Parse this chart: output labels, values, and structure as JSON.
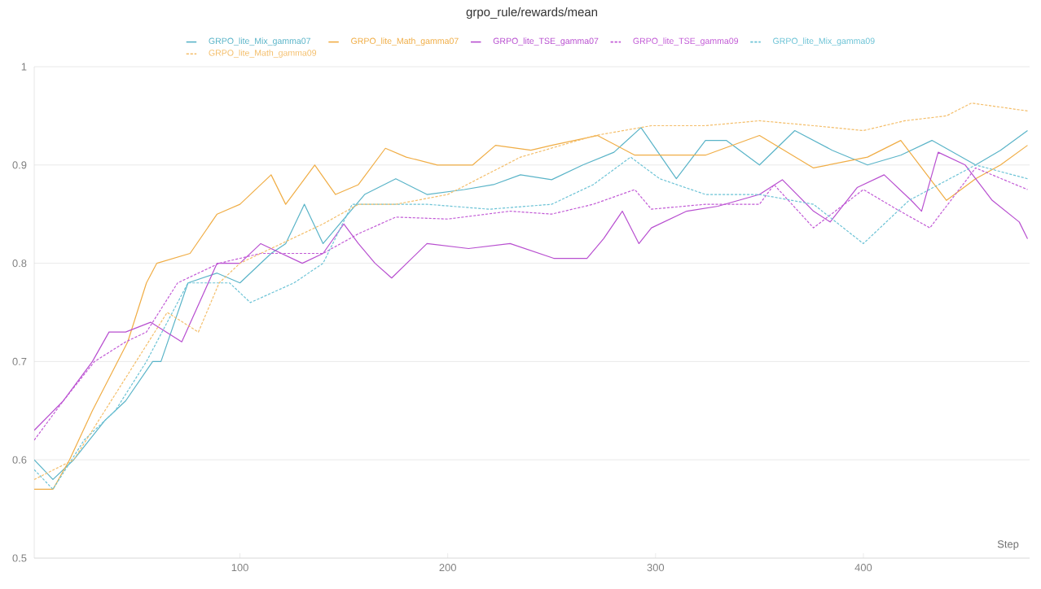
{
  "chart_data": {
    "type": "line",
    "title": "grpo_rule/rewards/mean",
    "xlabel": "Step",
    "xlim": [
      1,
      480
    ],
    "ylim": [
      0.5,
      1
    ],
    "xticks": [
      100,
      200,
      300,
      400
    ],
    "yticks": [
      0.5,
      0.6,
      0.7,
      0.8,
      0.9,
      1
    ],
    "grid": "y",
    "legend": "top",
    "series": [
      {
        "name": "GRPO_lite_Mix_gamma07",
        "color": "#5ab4c8",
        "line_style": "solid",
        "x": [
          1,
          10,
          20,
          35,
          45,
          58,
          62,
          75,
          89,
          100,
          115,
          122,
          131,
          140,
          152,
          160,
          175,
          190,
          208,
          222,
          235,
          250,
          265,
          280,
          293,
          310,
          324,
          334,
          350,
          367,
          385,
          402,
          418,
          433,
          454,
          466,
          479
        ],
        "values": [
          0.6,
          0.58,
          0.6,
          0.64,
          0.66,
          0.7,
          0.7,
          0.78,
          0.79,
          0.78,
          0.81,
          0.82,
          0.86,
          0.82,
          0.85,
          0.87,
          0.886,
          0.87,
          0.875,
          0.88,
          0.89,
          0.885,
          0.9,
          0.913,
          0.938,
          0.886,
          0.925,
          0.925,
          0.9,
          0.935,
          0.915,
          0.9,
          0.91,
          0.925,
          0.9,
          0.915,
          0.935
        ]
      },
      {
        "name": "GRPO_lite_Math_gamma07",
        "color": "#f0ad45",
        "line_style": "solid",
        "x": [
          1,
          10,
          18,
          29,
          46,
          55,
          60,
          76,
          89,
          100,
          115,
          122,
          136,
          146,
          157,
          170,
          180,
          195,
          212,
          223,
          240,
          250,
          272,
          290,
          298,
          324,
          350,
          376,
          402,
          418,
          440,
          454,
          466,
          479
        ],
        "values": [
          0.57,
          0.57,
          0.6,
          0.65,
          0.72,
          0.78,
          0.8,
          0.81,
          0.85,
          0.86,
          0.89,
          0.86,
          0.9,
          0.87,
          0.88,
          0.917,
          0.908,
          0.9,
          0.9,
          0.92,
          0.915,
          0.92,
          0.93,
          0.91,
          0.91,
          0.91,
          0.93,
          0.897,
          0.908,
          0.925,
          0.864,
          0.886,
          0.9,
          0.92
        ]
      },
      {
        "name": "GRPO_lite_TSE_gamma07",
        "color": "#b84fd0",
        "line_style": "solid",
        "x": [
          1,
          15,
          29,
          37,
          45,
          57,
          72,
          89,
          100,
          110,
          130,
          140,
          150,
          157,
          165,
          173,
          190,
          210,
          230,
          251,
          267,
          275,
          284,
          292,
          298,
          315,
          330,
          350,
          361,
          376,
          384,
          397,
          410,
          423,
          428,
          436,
          449,
          462,
          475,
          479
        ],
        "values": [
          0.63,
          0.66,
          0.7,
          0.73,
          0.73,
          0.74,
          0.72,
          0.8,
          0.8,
          0.82,
          0.8,
          0.81,
          0.84,
          0.82,
          0.8,
          0.785,
          0.82,
          0.815,
          0.82,
          0.805,
          0.805,
          0.825,
          0.853,
          0.82,
          0.836,
          0.853,
          0.858,
          0.87,
          0.885,
          0.853,
          0.842,
          0.877,
          0.89,
          0.864,
          0.853,
          0.913,
          0.9,
          0.864,
          0.842,
          0.825
        ]
      },
      {
        "name": "GRPO_lite_TSE_gamma09",
        "color": "#c25bd6",
        "line_style": "dashed",
        "x": [
          1,
          15,
          30,
          45,
          55,
          70,
          90,
          110,
          140,
          157,
          175,
          200,
          230,
          250,
          270,
          290,
          298,
          324,
          350,
          357,
          376,
          400,
          416,
          432,
          454,
          479
        ],
        "values": [
          0.62,
          0.66,
          0.7,
          0.72,
          0.73,
          0.78,
          0.8,
          0.81,
          0.81,
          0.83,
          0.847,
          0.845,
          0.853,
          0.85,
          0.86,
          0.875,
          0.855,
          0.86,
          0.86,
          0.88,
          0.836,
          0.875,
          0.855,
          0.836,
          0.897,
          0.875
        ]
      },
      {
        "name": "GRPO_lite_Mix_gamma09",
        "color": "#6cc3d6",
        "line_style": "dashed",
        "x": [
          1,
          10,
          25,
          40,
          55,
          75,
          95,
          105,
          126,
          140,
          154,
          165,
          190,
          220,
          250,
          270,
          288,
          302,
          324,
          350,
          376,
          400,
          422,
          454,
          479
        ],
        "values": [
          0.59,
          0.57,
          0.62,
          0.65,
          0.7,
          0.78,
          0.78,
          0.76,
          0.78,
          0.8,
          0.86,
          0.86,
          0.86,
          0.855,
          0.86,
          0.88,
          0.908,
          0.886,
          0.87,
          0.87,
          0.86,
          0.82,
          0.864,
          0.9,
          0.886
        ]
      },
      {
        "name": "GRPO_lite_Math_gamma09",
        "color": "#f4be6a",
        "line_style": "dashed",
        "x": [
          1,
          20,
          35,
          50,
          65,
          80,
          90,
          100,
          120,
          140,
          157,
          175,
          200,
          235,
          271,
          298,
          324,
          350,
          376,
          400,
          420,
          440,
          452,
          479
        ],
        "values": [
          0.58,
          0.6,
          0.65,
          0.7,
          0.75,
          0.73,
          0.78,
          0.8,
          0.82,
          0.84,
          0.86,
          0.86,
          0.87,
          0.908,
          0.93,
          0.94,
          0.94,
          0.945,
          0.94,
          0.935,
          0.945,
          0.95,
          0.963,
          0.955
        ]
      }
    ]
  }
}
